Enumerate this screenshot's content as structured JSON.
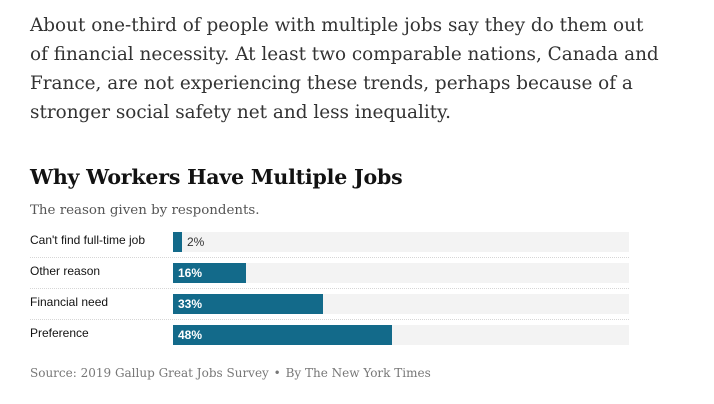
{
  "article": {
    "lines": [
      "About one-third of people with multiple jobs say they do them out",
      "of financial necessity. At least two comparable nations, Canada and",
      "France, are not experiencing these trends, perhaps because of a",
      "stronger social safety net and less inequality."
    ]
  },
  "colors": {
    "bar": "#136a8a",
    "bar_background": "#f3f3f3"
  },
  "chart_data": {
    "type": "bar",
    "orientation": "horizontal",
    "title": "Why Workers Have Multiple Jobs",
    "subtitle": "The reason given by respondents.",
    "categories": [
      "Can't find full-time job",
      "Other reason",
      "Financial need",
      "Preference"
    ],
    "values": [
      2,
      16,
      33,
      48
    ],
    "value_labels": [
      "2%",
      "16%",
      "33%",
      "48%"
    ],
    "unit": "%",
    "xlim": [
      0,
      100
    ],
    "xlabel": "",
    "ylabel": "",
    "grid": false,
    "legend": "none"
  },
  "source": {
    "text": "Source: 2019 Gallup Great Jobs Survey",
    "separator": "•",
    "credit": "By The New York Times"
  }
}
